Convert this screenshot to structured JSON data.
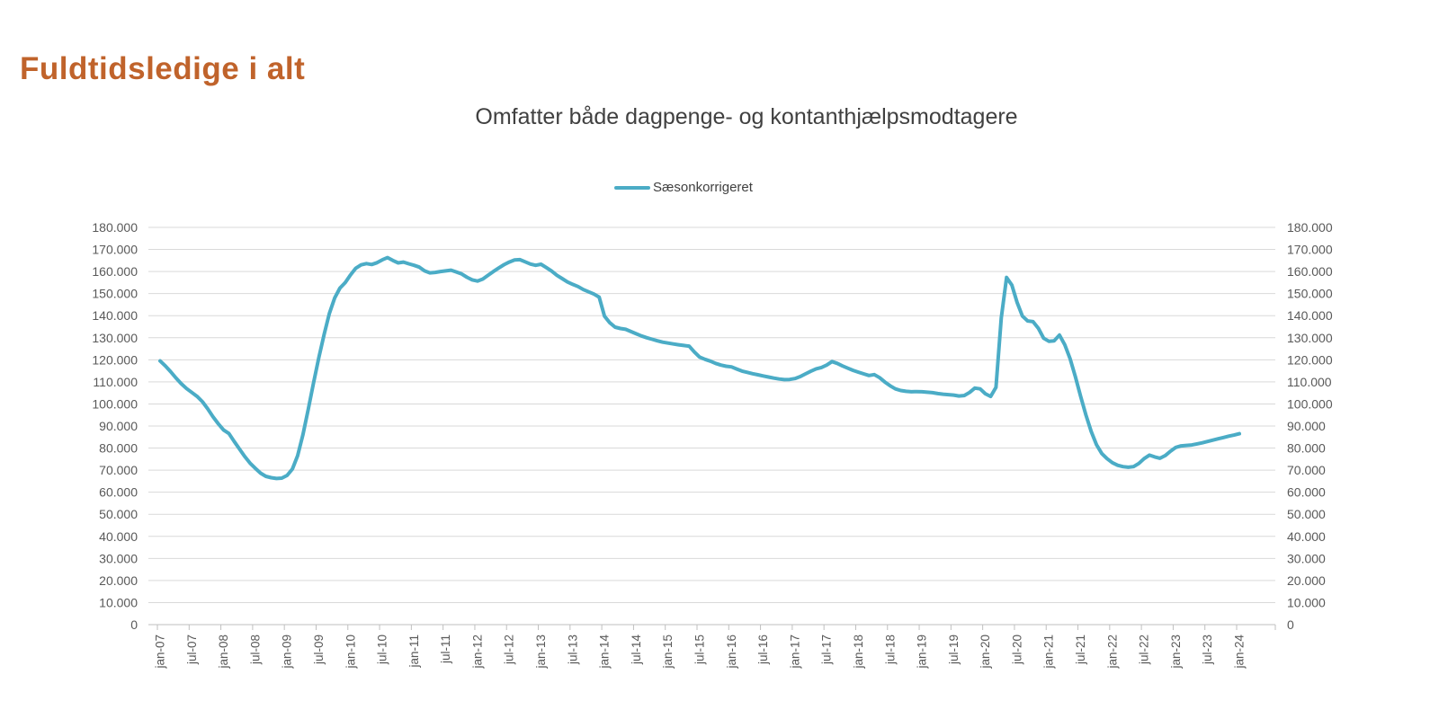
{
  "page": {
    "title": "Fuldtidsledige i alt",
    "title_color": "#C0632B",
    "background_color": "#FFFFFF"
  },
  "chart": {
    "subtitle": "Omfatter både dagpenge- og kontanthjælpsmodtagere",
    "legend": {
      "label": "Sæsonkorrigeret",
      "line_color": "#4BACC6"
    }
  },
  "chart_data": {
    "type": "line",
    "title": "Omfatter både dagpenge- og kontanthjælpsmodtagere",
    "legend_position": "top-center",
    "grid": "horizontal",
    "grid_color": "#D9D9D9",
    "axis_line_color": "#BFBFBF",
    "tick_label_color": "#595959",
    "x_start": "jan-07",
    "x_end": "jan-24",
    "x_interval": "monthly",
    "x_tick_interval_months": 6,
    "x_tick_labels": [
      "jan-07",
      "jul-07",
      "jan-08",
      "jul-08",
      "jan-09",
      "jul-09",
      "jan-10",
      "jul-10",
      "jan-11",
      "jul-11",
      "jan-12",
      "jul-12",
      "jan-13",
      "jul-13",
      "jan-14",
      "jul-14",
      "jan-15",
      "jul-15",
      "jan-16",
      "jul-16",
      "jan-17",
      "jul-17",
      "jan-18",
      "jul-18",
      "jan-19",
      "jul-19",
      "jan-20",
      "jul-20",
      "jan-21",
      "jul-21",
      "jan-22",
      "jul-22",
      "jan-23",
      "jul-23",
      "jan-24"
    ],
    "ylim": [
      0,
      180000
    ],
    "y_step": 10000,
    "y_tick_labels": [
      "0",
      "10.000",
      "20.000",
      "30.000",
      "40.000",
      "50.000",
      "60.000",
      "70.000",
      "80.000",
      "90.000",
      "100.000",
      "110.000",
      "120.000",
      "130.000",
      "140.000",
      "150.000",
      "160.000",
      "170.000",
      "180.000"
    ],
    "y_axis_left": true,
    "y_axis_right": true,
    "series": [
      {
        "name": "Sæsonkorrigeret",
        "color": "#4BACC6",
        "values": [
          119500,
          117200,
          114600,
          111800,
          109200,
          107000,
          105200,
          103400,
          101000,
          97800,
          94200,
          91000,
          88200,
          86600,
          83000,
          79600,
          76200,
          73200,
          70800,
          68600,
          67200,
          66600,
          66200,
          66400,
          67600,
          70500,
          76500,
          86000,
          97500,
          109500,
          121000,
          131500,
          141000,
          148000,
          152500,
          155000,
          158500,
          161500,
          163000,
          163600,
          163200,
          164000,
          165300,
          166300,
          165000,
          163900,
          164300,
          163500,
          162800,
          162000,
          160300,
          159400,
          159600,
          160000,
          160300,
          160600,
          159800,
          158900,
          157400,
          156200,
          155700,
          156600,
          158300,
          160000,
          161600,
          163100,
          164300,
          165200,
          165400,
          164400,
          163400,
          162800,
          163300,
          161800,
          160200,
          158300,
          156800,
          155300,
          154200,
          153200,
          151800,
          150800,
          149800,
          148400,
          139800,
          136800,
          134800,
          134200,
          133800,
          132800,
          131800,
          130800,
          130000,
          129300,
          128600,
          128000,
          127600,
          127200,
          126800,
          126500,
          126200,
          123500,
          121200,
          120200,
          119400,
          118400,
          117600,
          117100,
          116800,
          115800,
          114900,
          114300,
          113700,
          113200,
          112700,
          112200,
          111700,
          111300,
          111000,
          111100,
          111500,
          112400,
          113600,
          114800,
          115900,
          116500,
          117600,
          119200,
          118400,
          117200,
          116200,
          115200,
          114400,
          113600,
          112900,
          113300,
          111900,
          109900,
          108200,
          106800,
          106100,
          105700,
          105500,
          105600,
          105500,
          105300,
          105100,
          104700,
          104400,
          104200,
          104000,
          103600,
          103800,
          105200,
          107200,
          106800,
          104600,
          103400,
          107500,
          139000,
          157300,
          153800,
          146000,
          139800,
          137600,
          137300,
          134300,
          129800,
          128400,
          128600,
          131200,
          126800,
          120500,
          112500,
          103500,
          95000,
          87500,
          81500,
          77500,
          75200,
          73400,
          72200,
          71600,
          71300,
          71600,
          73000,
          75200,
          76800,
          76000,
          75400,
          76600,
          78600,
          80300,
          81000,
          81200,
          81400,
          81900,
          82400,
          83000,
          83600,
          84200,
          84800,
          85400,
          85900,
          86500
        ]
      }
    ]
  }
}
